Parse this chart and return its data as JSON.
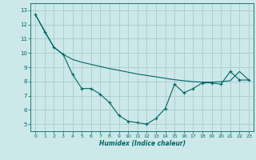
{
  "xlabel": "Humidex (Indice chaleur)",
  "bg_color": "#cce8e8",
  "grid_color": "#aacccc",
  "line_color": "#006666",
  "xlim": [
    -0.5,
    23.5
  ],
  "ylim": [
    4.5,
    13.5
  ],
  "xticks": [
    0,
    1,
    2,
    3,
    4,
    5,
    6,
    7,
    8,
    9,
    10,
    11,
    12,
    13,
    14,
    15,
    16,
    17,
    18,
    19,
    20,
    21,
    22,
    23
  ],
  "yticks": [
    5,
    6,
    7,
    8,
    9,
    10,
    11,
    12,
    13
  ],
  "series1_x": [
    0,
    1,
    2,
    3,
    4,
    5,
    6,
    7,
    8,
    9,
    10,
    11,
    12,
    13,
    14,
    15,
    16,
    17,
    18,
    19,
    20,
    21,
    22,
    23
  ],
  "series1_y": [
    12.7,
    11.5,
    10.4,
    9.9,
    8.5,
    7.5,
    7.5,
    7.1,
    6.5,
    5.6,
    5.2,
    5.1,
    5.0,
    5.4,
    6.1,
    7.8,
    7.2,
    7.5,
    7.9,
    7.9,
    7.8,
    8.7,
    8.1,
    8.1
  ],
  "series2_x": [
    0,
    2,
    3,
    4,
    5,
    6,
    7,
    8,
    9,
    10,
    11,
    12,
    13,
    14,
    15,
    16,
    17,
    18,
    19,
    20,
    21,
    22,
    23
  ],
  "series2_y": [
    12.7,
    10.4,
    9.9,
    9.55,
    9.35,
    9.2,
    9.05,
    8.9,
    8.78,
    8.65,
    8.52,
    8.42,
    8.32,
    8.22,
    8.12,
    8.05,
    7.98,
    7.95,
    7.95,
    7.98,
    8.05,
    8.7,
    8.1
  ]
}
